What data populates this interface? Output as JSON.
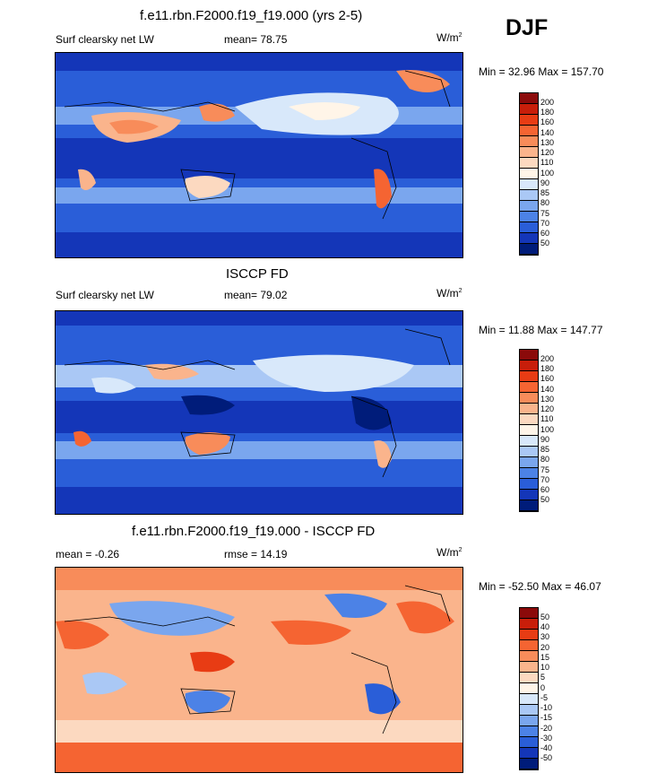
{
  "season": "DJF",
  "units": "W/m",
  "units_sup": "2",
  "panels": [
    {
      "title": "f.e11.rbn.F2000.f19_f19.000 (yrs 2-5)",
      "left_label": "Surf clearsky net LW",
      "center_label": "mean=  78.75",
      "stats": "Min =  32.96 Max = 157.70",
      "colorbar": [
        "200",
        "180",
        "160",
        "140",
        "130",
        "120",
        "110",
        "100",
        "90",
        "85",
        "80",
        "75",
        "70",
        "60",
        "50"
      ]
    },
    {
      "title": "ISCCP FD",
      "left_label": "Surf clearsky net LW",
      "center_label": "mean=  79.02",
      "stats": "Min =  11.88 Max = 147.77",
      "colorbar": [
        "200",
        "180",
        "160",
        "140",
        "130",
        "120",
        "110",
        "100",
        "90",
        "85",
        "80",
        "75",
        "70",
        "60",
        "50"
      ]
    },
    {
      "title": "f.e11.rbn.F2000.f19_f19.000 - ISCCP FD",
      "left_label": "mean =  -0.26",
      "center_label": "rmse =  14.19",
      "stats": "Min = -52.50 Max =  46.07",
      "colorbar": [
        "50",
        "40",
        "30",
        "20",
        "15",
        "10",
        "5",
        "0",
        "-5",
        "-10",
        "-15",
        "-20",
        "-30",
        "-40",
        "-50"
      ]
    }
  ],
  "colors": {
    "abs_scale": [
      "#8b0a0a",
      "#c81e0a",
      "#e83c14",
      "#f56432",
      "#f88c5a",
      "#fab48c",
      "#fcd9c0",
      "#fff5e8",
      "#d8e8fa",
      "#aac8f5",
      "#7aa6ee",
      "#4c82e6",
      "#2a5ed8",
      "#1436b8",
      "#001c7a"
    ],
    "diff_scale": [
      "#8b0a0a",
      "#c81e0a",
      "#e83c14",
      "#f56432",
      "#f88c5a",
      "#fab48c",
      "#fcd9c0",
      "#fff5e8",
      "#d8e8fa",
      "#aac8f5",
      "#7aa6ee",
      "#4c82e6",
      "#2a5ed8",
      "#1436b8",
      "#001c7a"
    ]
  }
}
